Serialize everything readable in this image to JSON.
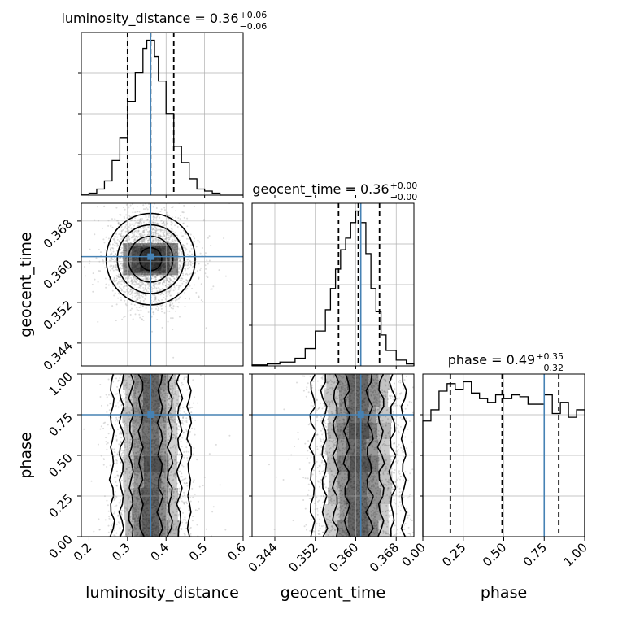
{
  "chart_data": {
    "type": "corner",
    "parameters": [
      "luminosity_distance",
      "geocent_time",
      "phase"
    ],
    "truths": {
      "luminosity_distance": 0.36,
      "geocent_time": 0.361,
      "phase": 0.75
    },
    "colors": {
      "truth": "#4682b4",
      "hist": "#000000",
      "grid": "#b0b0b0",
      "scatter": "#9a9a9a"
    },
    "grid": true,
    "titles": {
      "luminosity_distance": {
        "base": "luminosity_distance = 0.36",
        "up": "+0.06",
        "down": "−0.06"
      },
      "geocent_time": {
        "base": "geocent_time = 0.36",
        "up": "+0.00",
        "down": "−0.00"
      },
      "phase": {
        "base": "phase = 0.49",
        "up": "+0.35",
        "down": "−0.32"
      }
    },
    "axes": {
      "luminosity_distance": {
        "label": "luminosity_distance",
        "range": [
          0.18,
          0.6
        ],
        "ticks": [
          0.2,
          0.3,
          0.4,
          0.5,
          0.6
        ],
        "tick_labels": [
          "0.2",
          "0.3",
          "0.4",
          "0.5",
          "0.6"
        ]
      },
      "geocent_time": {
        "label": "geocent_time",
        "range": [
          0.3395,
          0.3715
        ],
        "ticks": [
          0.344,
          0.352,
          0.36,
          0.368
        ],
        "tick_labels": [
          "0.344",
          "0.352",
          "0.360",
          "0.368"
        ]
      },
      "phase": {
        "label": "phase",
        "range": [
          0.0,
          1.0
        ],
        "ticks": [
          0.0,
          0.25,
          0.5,
          0.75,
          1.0
        ],
        "tick_labels": [
          "0.00",
          "0.25",
          "0.50",
          "0.75",
          "1.00"
        ]
      }
    },
    "histograms": {
      "luminosity_distance": {
        "bin_edges": [
          0.18,
          0.2,
          0.22,
          0.24,
          0.26,
          0.28,
          0.3,
          0.32,
          0.34,
          0.35,
          0.36,
          0.37,
          0.38,
          0.4,
          0.42,
          0.44,
          0.46,
          0.48,
          0.5,
          0.52,
          0.54,
          0.6
        ],
        "counts": [
          0.5,
          1,
          3,
          7,
          17,
          28,
          46,
          60,
          72,
          76,
          76,
          68,
          56,
          40,
          24,
          16,
          8,
          3,
          2,
          1,
          0
        ],
        "quantiles": [
          0.3,
          0.36,
          0.42
        ]
      },
      "geocent_time": {
        "bin_edges": [
          0.3395,
          0.3425,
          0.345,
          0.348,
          0.35,
          0.352,
          0.354,
          0.355,
          0.356,
          0.357,
          0.358,
          0.359,
          0.36,
          0.361,
          0.362,
          0.363,
          0.364,
          0.365,
          0.366,
          0.368,
          0.37,
          0.3715
        ],
        "counts": [
          0.5,
          1,
          2,
          4,
          9,
          18,
          29,
          40,
          50,
          60,
          66,
          74,
          80,
          74,
          58,
          40,
          28,
          16,
          8,
          3,
          1
        ],
        "quantiles": [
          0.3566,
          0.3605,
          0.3647
        ]
      },
      "phase": {
        "bin_edges": [
          0.0,
          0.05,
          0.1,
          0.15,
          0.2,
          0.25,
          0.3,
          0.35,
          0.4,
          0.45,
          0.5,
          0.55,
          0.6,
          0.65,
          0.7,
          0.75,
          0.8,
          0.85,
          0.9,
          0.95,
          1.0
        ],
        "counts": [
          62,
          68,
          78,
          82,
          79,
          83,
          77,
          74,
          72,
          76,
          74,
          76,
          75,
          71,
          71,
          76,
          66,
          72,
          64,
          68
        ],
        "quantiles": [
          0.17,
          0.49,
          0.84
        ]
      }
    },
    "density_2d": {
      "geocent_time_vs_luminosity_distance": {
        "center": [
          0.36,
          0.3605
        ],
        "sigma": [
          0.055,
          0.0045
        ]
      },
      "phase_vs_luminosity_distance": {
        "center_x": 0.36,
        "sigma_x": 0.05
      },
      "phase_vs_geocent_time": {
        "center_x": 0.3605,
        "sigma_x": 0.0045
      }
    }
  }
}
